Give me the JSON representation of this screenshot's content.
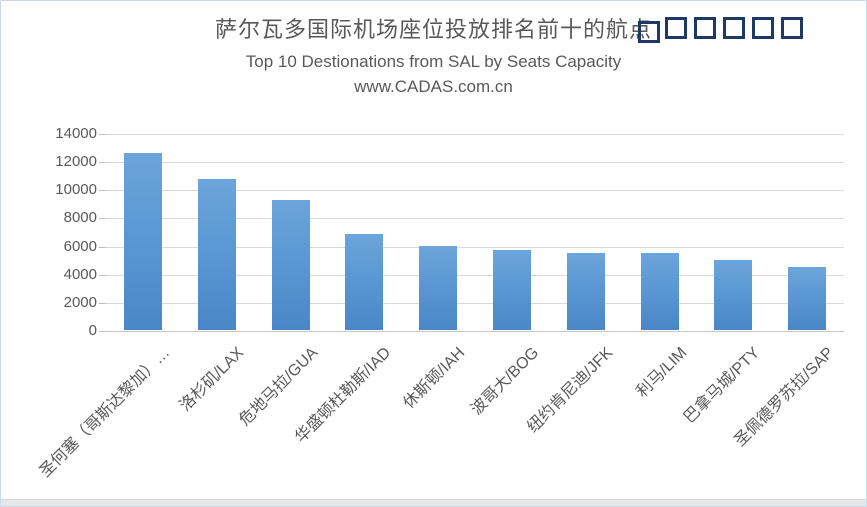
{
  "header": {
    "title": "萨尔瓦多国际机场座位投放排名前十的航点",
    "subtitle": "Top 10 Destionations from SAL by Seats Capacity",
    "watermark": "www.CADAS.com.cn"
  },
  "decoration": {
    "missing_glyph_box_count": 6,
    "box_border_color": "#1f3864"
  },
  "chart_data": {
    "type": "bar",
    "title": "萨尔瓦多国际机场座位投放排名前十的航点",
    "subtitle": "Top 10 Destionations from SAL by Seats Capacity",
    "watermark": "www.CADAS.com.cn",
    "categories": [
      "圣何塞（哥斯达黎加）…",
      "洛杉矶/LAX",
      "危地马拉/GUA",
      "华盛顿杜勒斯/IAD",
      "休斯顿/IAH",
      "波哥大/BOG",
      "纽约肯尼迪/JFK",
      "利马/LIM",
      "巴拿马城/PTY",
      "圣佩德罗苏拉/SAP"
    ],
    "values": [
      12600,
      10700,
      9250,
      6850,
      5950,
      5700,
      5450,
      5450,
      4950,
      4500
    ],
    "xlabel": "",
    "ylabel": "",
    "ylim": [
      0,
      14000
    ],
    "yticks": [
      0,
      2000,
      4000,
      6000,
      8000,
      10000,
      12000,
      14000
    ],
    "grid": true,
    "legend": "none",
    "bar_color_top": "#6ca5db",
    "bar_color_bottom": "#4a87c8",
    "gridline_color": "#d9d9d9",
    "axis_text_color": "#595959"
  }
}
